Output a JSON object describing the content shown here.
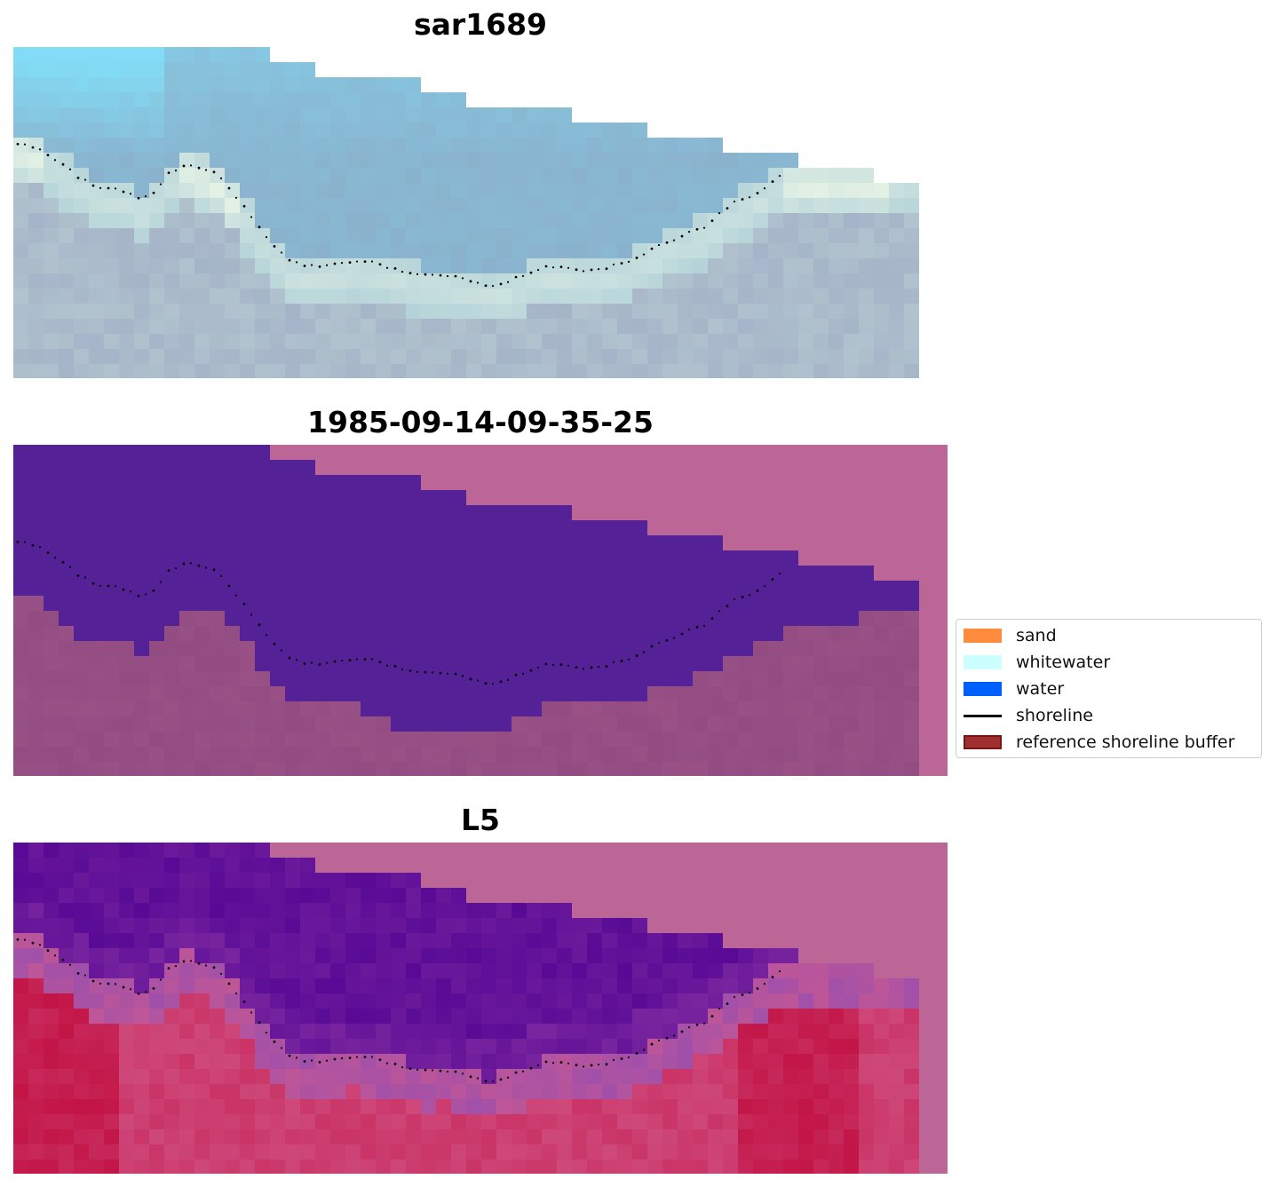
{
  "panels": [
    {
      "title": "sar1689",
      "type": "rgb-image"
    },
    {
      "title": "1985-09-14-09-35-25",
      "type": "classified"
    },
    {
      "title": "L5",
      "type": "index"
    }
  ],
  "legend": {
    "items": [
      {
        "label": "sand",
        "color": "#ff8c3c",
        "kind": "patch"
      },
      {
        "label": "whitewater",
        "color": "#ccffff",
        "kind": "patch"
      },
      {
        "label": "water",
        "color": "#0060ff",
        "kind": "patch"
      },
      {
        "label": "shoreline",
        "color": "#000000",
        "kind": "line"
      },
      {
        "label": "reference shoreline buffer",
        "color": "#a03030",
        "kind": "patch",
        "edge": "#7a1515"
      }
    ]
  },
  "colors": {
    "nodata": "#bc6697",
    "water_class": "#542296",
    "land_class": "#924c82",
    "shoreline": "#000000"
  }
}
